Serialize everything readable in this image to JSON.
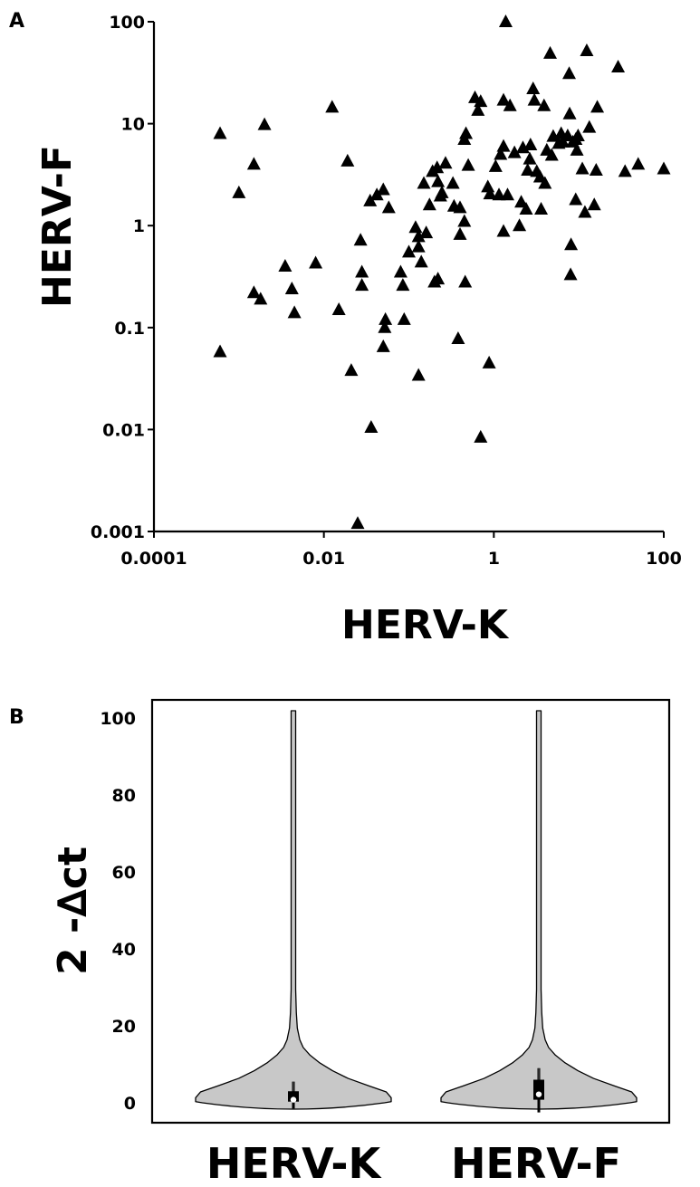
{
  "panels": {
    "a_letter": "A",
    "b_letter": "B"
  },
  "chart_data": [
    {
      "type": "scatter",
      "panel": "A",
      "xlabel": "HERV-K",
      "ylabel": "HERV-F",
      "xscale": "log",
      "yscale": "log",
      "xlim": [
        0.0001,
        100
      ],
      "ylim": [
        0.001,
        100
      ],
      "xticks": [
        0.0001,
        0.01,
        1,
        100
      ],
      "xtick_labels": [
        "0.0001",
        "0.01",
        "1",
        "100"
      ],
      "yticks": [
        0.001,
        0.01,
        0.1,
        1,
        10,
        100
      ],
      "ytick_labels": [
        "0.001",
        "0.01",
        "0.1",
        "1",
        "10",
        "100"
      ],
      "grid": false,
      "marker": "triangle",
      "marker_color": "#000000",
      "points": [
        [
          0.0006,
          8.0
        ],
        [
          0.0006,
          0.058
        ],
        [
          0.001,
          2.1
        ],
        [
          0.0015,
          4.0
        ],
        [
          0.0015,
          0.22
        ],
        [
          0.002,
          9.8
        ],
        [
          0.0018,
          0.19
        ],
        [
          0.0035,
          0.4
        ],
        [
          0.0042,
          0.24
        ],
        [
          0.0045,
          0.14
        ],
        [
          0.008,
          0.43
        ],
        [
          0.0125,
          14.5
        ],
        [
          0.015,
          0.15
        ],
        [
          0.019,
          4.3
        ],
        [
          0.021,
          0.038
        ],
        [
          0.025,
          0.0012
        ],
        [
          0.027,
          0.72
        ],
        [
          0.028,
          0.35
        ],
        [
          0.028,
          0.26
        ],
        [
          0.036,
          0.0105
        ],
        [
          0.035,
          1.75
        ],
        [
          0.042,
          2.0
        ],
        [
          0.05,
          2.25
        ],
        [
          0.053,
          0.12
        ],
        [
          0.052,
          0.1
        ],
        [
          0.05,
          0.065
        ],
        [
          0.058,
          1.5
        ],
        [
          0.08,
          0.35
        ],
        [
          0.085,
          0.26
        ],
        [
          0.088,
          0.12
        ],
        [
          0.1,
          0.55
        ],
        [
          0.12,
          0.96
        ],
        [
          0.13,
          0.78
        ],
        [
          0.13,
          0.034
        ],
        [
          0.14,
          0.44
        ],
        [
          0.15,
          2.6
        ],
        [
          0.13,
          0.62
        ],
        [
          0.16,
          0.85
        ],
        [
          0.175,
          1.6
        ],
        [
          0.19,
          3.4
        ],
        [
          0.215,
          3.7
        ],
        [
          0.22,
          2.7
        ],
        [
          0.235,
          1.95
        ],
        [
          0.2,
          0.28
        ],
        [
          0.22,
          0.3
        ],
        [
          0.245,
          2.1
        ],
        [
          0.27,
          4.1
        ],
        [
          0.33,
          2.6
        ],
        [
          0.34,
          1.55
        ],
        [
          0.4,
          1.5
        ],
        [
          0.38,
          0.078
        ],
        [
          0.4,
          0.82
        ],
        [
          0.45,
          1.1
        ],
        [
          0.46,
          0.28
        ],
        [
          0.45,
          7.0
        ],
        [
          0.47,
          8.0
        ],
        [
          0.5,
          3.9
        ],
        [
          0.6,
          18.0
        ],
        [
          0.65,
          13.5
        ],
        [
          0.7,
          16.5
        ],
        [
          0.7,
          0.0084
        ],
        [
          0.85,
          2.4
        ],
        [
          0.88,
          0.045
        ],
        [
          0.9,
          2.05
        ],
        [
          1.05,
          3.8
        ],
        [
          1.15,
          2.0
        ],
        [
          1.2,
          5.0
        ],
        [
          1.3,
          0.88
        ],
        [
          1.3,
          17.0
        ],
        [
          1.3,
          6.0
        ],
        [
          1.38,
          100
        ],
        [
          1.45,
          2.0
        ],
        [
          1.55,
          15.0
        ],
        [
          1.75,
          5.2
        ],
        [
          2.0,
          1.0
        ],
        [
          2.1,
          1.7
        ],
        [
          2.2,
          5.8
        ],
        [
          2.4,
          1.45
        ],
        [
          2.5,
          3.5
        ],
        [
          2.7,
          6.2
        ],
        [
          2.65,
          4.5
        ],
        [
          2.9,
          22.0
        ],
        [
          3.0,
          17.0
        ],
        [
          3.2,
          3.4
        ],
        [
          3.5,
          3.0
        ],
        [
          3.6,
          1.45
        ],
        [
          3.9,
          15.0
        ],
        [
          4.0,
          2.6
        ],
        [
          4.2,
          5.5
        ],
        [
          4.6,
          49.0
        ],
        [
          4.8,
          4.9
        ],
        [
          5.0,
          7.5
        ],
        [
          5.8,
          6.4
        ],
        [
          6.2,
          8.0
        ],
        [
          6.5,
          6.6
        ],
        [
          7.4,
          7.6
        ],
        [
          7.8,
          12.5
        ],
        [
          7.7,
          31.0
        ],
        [
          8.0,
          0.33
        ],
        [
          8.1,
          0.65
        ],
        [
          8.5,
          6.6
        ],
        [
          9.2,
          7.0
        ],
        [
          9.5,
          5.5
        ],
        [
          9.2,
          1.8
        ],
        [
          9.8,
          7.6
        ],
        [
          11.0,
          3.6
        ],
        [
          11.8,
          1.35
        ],
        [
          12.4,
          52.0
        ],
        [
          13.3,
          9.2
        ],
        [
          15.2,
          1.6
        ],
        [
          16.5,
          14.5
        ],
        [
          16.0,
          3.5
        ],
        [
          29.0,
          36.0
        ],
        [
          35.0,
          3.4
        ],
        [
          50.0,
          4.0
        ],
        [
          100.0,
          3.6
        ]
      ]
    },
    {
      "type": "violin",
      "panel": "B",
      "ylabel": "2 -∆ct",
      "ylim": [
        0,
        100
      ],
      "yticks": [
        0,
        20,
        40,
        60,
        80,
        100
      ],
      "ytick_labels": [
        "0",
        "20",
        "40",
        "60",
        "80",
        "100"
      ],
      "fill_color": "#c8c8c8",
      "categories": [
        "HERV-K",
        "HERV-F"
      ],
      "series": [
        {
          "q1": 0.3,
          "median": 0.8,
          "q3": 3.0,
          "whisker_low": -1.5,
          "whisker_high": 5.5,
          "max": 100
        },
        {
          "q1": 0.8,
          "median": 2.2,
          "q3": 6.0,
          "whisker_low": -2.5,
          "whisker_high": 9.0,
          "max": 100
        }
      ]
    }
  ]
}
